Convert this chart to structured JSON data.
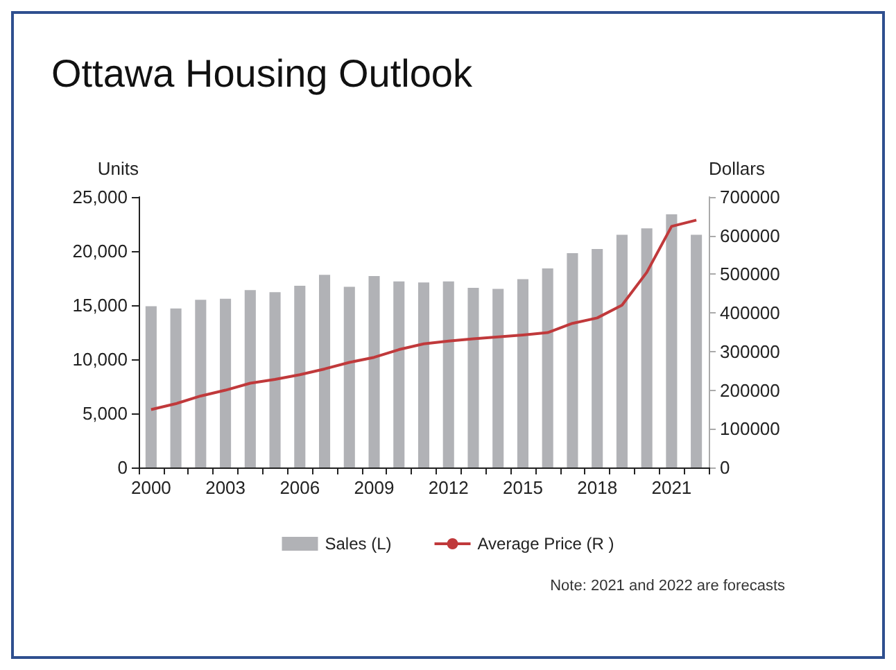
{
  "chart_data": {
    "type": "bar",
    "title": "Ottawa Housing Outlook",
    "ylabel": "Units",
    "y2label": "Dollars",
    "categories": [
      "2000",
      null,
      null,
      "2003",
      null,
      null,
      "2006",
      null,
      null,
      "2009",
      null,
      null,
      "2012",
      null,
      null,
      "2015",
      null,
      null,
      "2018",
      null,
      null,
      "2021",
      null
    ],
    "series": [
      {
        "name": "Sales (L)",
        "color": "#b1b2b6",
        "values": [
          14900,
          14700,
          15500,
          15600,
          16400,
          16200,
          16800,
          17800,
          16700,
          17700,
          17200,
          17100,
          17200,
          16600,
          16500,
          17400,
          18400,
          19800,
          20200,
          21500,
          22100,
          23400,
          21500
        ]
      },
      {
        "name": "Average Price (R )",
        "type": "line",
        "axis": "y2",
        "color": "#c0393b",
        "values": [
          150000,
          165000,
          185000,
          200000,
          218000,
          228000,
          240000,
          255000,
          272000,
          285000,
          305000,
          320000,
          327000,
          333000,
          338000,
          343000,
          349000,
          373000,
          387000,
          420000,
          505000,
          624000,
          640000
        ]
      }
    ],
    "ylim": [
      0,
      25000
    ],
    "yticks": [
      0,
      {
        "value": 5000,
        "label": "5,000"
      },
      {
        "value": 10000,
        "label": "10,000"
      },
      {
        "value": 15000,
        "label": "15,000"
      },
      {
        "value": 20000,
        "label": "20,000"
      },
      {
        "value": 25000,
        "label": "25,000"
      }
    ],
    "y2lim": [
      0,
      700000
    ],
    "y2ticks": [
      0,
      100000,
      200000,
      300000,
      400000,
      500000,
      600000,
      700000
    ],
    "grid": false,
    "legend": "bottom",
    "marker": "none",
    "annotations": [
      "Note: 2021 and 2022 are forecasts"
    ]
  }
}
